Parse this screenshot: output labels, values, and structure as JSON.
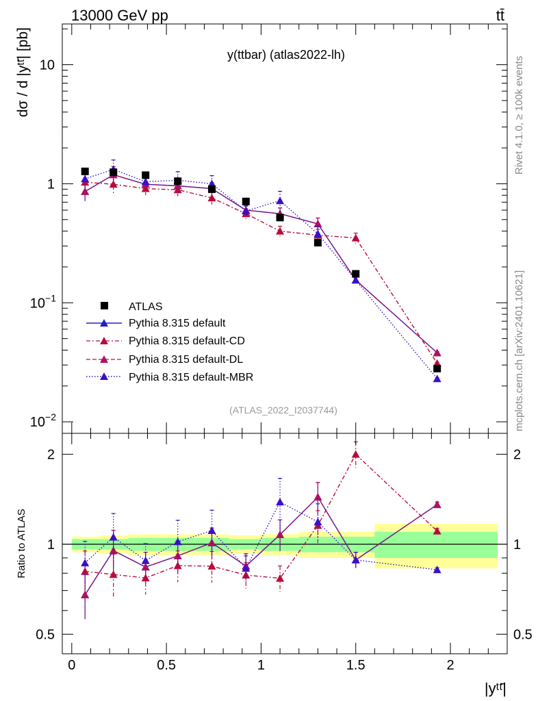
{
  "header": {
    "left": "13000 GeV pp",
    "right": "tt̄"
  },
  "side": {
    "top": "Rivet 4.1.0, ≥ 100k events",
    "bottom": "mcplots.cern.ch [arXiv:2401.10621]"
  },
  "main": {
    "title": "y(ttbar) (atlas2022-lh)",
    "ylabel": "dσ / d |yᵗᵗ̄| [pb]",
    "watermark": "(ATLAS_2022_I2037744)",
    "yticks": [
      {
        "value": 0.01,
        "base": "10",
        "exp": "−2"
      },
      {
        "value": 0.1,
        "base": "10",
        "exp": "−1"
      },
      {
        "value": 1,
        "base": "1",
        "exp": ""
      },
      {
        "value": 10,
        "base": "10",
        "exp": ""
      }
    ]
  },
  "ratio": {
    "ylabel": "Ratio to ATLAS",
    "yticks": [
      "0.5",
      "1",
      "2"
    ]
  },
  "xaxis": {
    "label": "|yᵗᵗ̄|",
    "ticks": [
      "0",
      "0.5",
      "1",
      "1.5",
      "2"
    ]
  },
  "legend": [
    {
      "label": "ATLAS"
    },
    {
      "label": "Pythia 8.315 default"
    },
    {
      "label": "Pythia 8.315 default-CD"
    },
    {
      "label": "Pythia 8.315 default-DL"
    },
    {
      "label": "Pythia 8.315 default-MBR"
    }
  ],
  "chart_data": {
    "type": "line",
    "title": "y(ttbar) (atlas2022-lh)",
    "xlabel": "|y(ttbar)|",
    "ylabel": "dσ / d |y(ttbar)| [pb]",
    "xlim": [
      -0.05,
      2.3
    ],
    "ylim": [
      0.008,
      22
    ],
    "yscale": "log",
    "ratio_ylim": [
      0.43,
      2.35
    ],
    "x": [
      0.07,
      0.22,
      0.39,
      0.56,
      0.74,
      0.92,
      1.1,
      1.3,
      1.5,
      1.93
    ],
    "bins": [
      [
        0,
        0.14
      ],
      [
        0.14,
        0.3
      ],
      [
        0.3,
        0.48
      ],
      [
        0.48,
        0.65
      ],
      [
        0.65,
        0.83
      ],
      [
        0.83,
        1.0
      ],
      [
        1.0,
        1.2
      ],
      [
        1.2,
        1.4
      ],
      [
        1.4,
        1.6
      ],
      [
        1.6,
        2.25
      ]
    ],
    "data": {
      "name": "ATLAS",
      "values": [
        1.27,
        1.25,
        1.18,
        1.05,
        0.9,
        0.71,
        0.52,
        0.32,
        0.175,
        0.028
      ],
      "band_inner": [
        0.04,
        0.04,
        0.05,
        0.05,
        0.05,
        0.04,
        0.05,
        0.06,
        0.06,
        0.1
      ],
      "band_outer": [
        0.06,
        0.07,
        0.08,
        0.08,
        0.08,
        0.07,
        0.08,
        0.1,
        0.1,
        0.17
      ]
    },
    "series": [
      {
        "name": "Pythia 8.315 default",
        "color": "#2020cc",
        "dash": "",
        "marker_color": "#2020cc",
        "values": [
          0.86,
          1.19,
          0.99,
          0.96,
          0.91,
          0.6,
          0.56,
          0.46,
          0.155,
          0.038
        ],
        "errors": [
          0.17,
          0.17,
          0.12,
          0.12,
          0.12,
          0.1,
          0.12,
          0.12,
          0.06,
          0.02
        ]
      },
      {
        "name": "Pythia 8.315 default-CD",
        "color": "#b80c3c",
        "dash": "6,3,2,3",
        "marker_color": "#b80c3c",
        "values": [
          1.03,
          0.99,
          0.91,
          0.89,
          0.76,
          0.56,
          0.4,
          0.37,
          0.35,
          0.031
        ],
        "errors": [
          0.17,
          0.17,
          0.12,
          0.12,
          0.12,
          0.1,
          0.1,
          0.12,
          0.1,
          0.02
        ]
      },
      {
        "name": "Pythia 8.315 default-DL",
        "color": "#b01060",
        "dash": "6,3",
        "marker_color": "#b01060",
        "values": [
          0.86,
          1.19,
          0.99,
          0.96,
          0.91,
          0.6,
          0.56,
          0.46,
          0.155,
          0.038
        ],
        "errors": [
          0.17,
          0.17,
          0.12,
          0.12,
          0.12,
          0.1,
          0.12,
          0.12,
          0.06,
          0.02
        ]
      },
      {
        "name": "Pythia 8.315 default-MBR",
        "color": "#3010c0",
        "dash": "1.5,2.5",
        "marker_color": "#3a10c8",
        "values": [
          1.1,
          1.32,
          1.04,
          1.07,
          1.0,
          0.59,
          0.72,
          0.38,
          0.155,
          0.023
        ],
        "errors": [
          0.18,
          0.2,
          0.14,
          0.18,
          0.17,
          0.1,
          0.2,
          0.15,
          0.06,
          0.015
        ]
      }
    ]
  }
}
